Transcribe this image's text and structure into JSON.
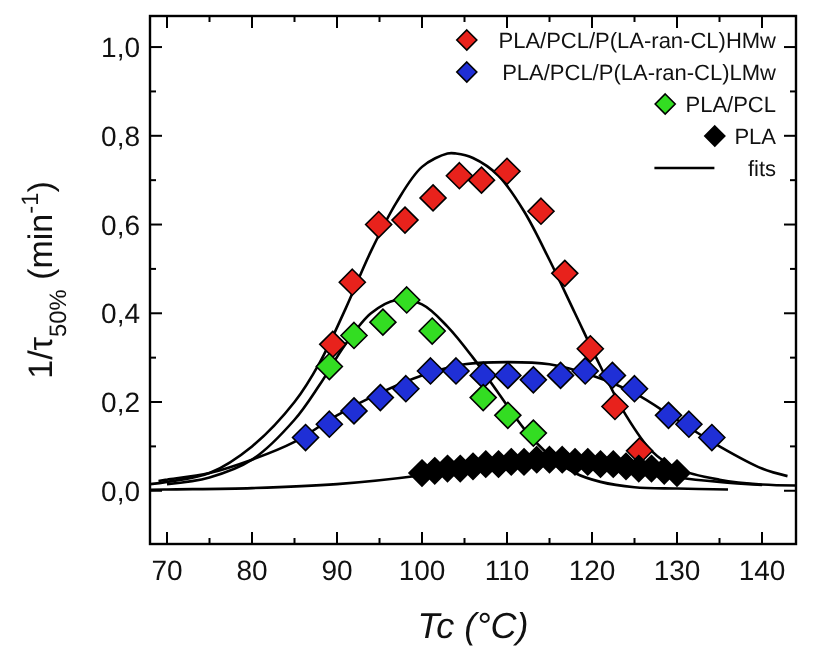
{
  "chart_data": {
    "type": "scatter",
    "xlabel": "Tc (°C)",
    "ylabel": "1/τ$_{50%}$ (min$^{-1}$)",
    "xlim": [
      68,
      144
    ],
    "ylim": [
      -0.12,
      1.07
    ],
    "xticks": [
      70,
      {
        "value": 75,
        "label": null
      },
      80,
      {
        "value": 85,
        "label": null
      },
      90,
      {
        "value": 95,
        "label": null
      },
      100,
      {
        "value": 105,
        "label": null
      },
      110,
      {
        "value": 115,
        "label": null
      },
      120,
      {
        "value": 125,
        "label": null
      },
      130,
      {
        "value": 135,
        "label": null
      },
      140
    ],
    "yticks": [
      {
        "value": 0,
        "label": "0,0"
      },
      {
        "value": 0.1,
        "label": null
      },
      {
        "value": 0.2,
        "label": "0,2"
      },
      {
        "value": 0.3,
        "label": null
      },
      {
        "value": 0.4,
        "label": "0,4"
      },
      {
        "value": 0.5,
        "label": null
      },
      {
        "value": 0.6,
        "label": "0,6"
      },
      {
        "value": 0.7,
        "label": null
      },
      {
        "value": 0.8,
        "label": "0,8"
      },
      {
        "value": 0.9,
        "label": null
      },
      {
        "value": 1.0,
        "label": "1,0"
      }
    ],
    "legend": "top right",
    "grid": false,
    "series": [
      {
        "type": "scatter",
        "marker": "diamond",
        "name": "PLA/PCL/P(LA-ran-CL)HMw",
        "color": "#e8221c",
        "x": [
          89.5,
          91.8,
          94.9,
          98,
          101.3,
          104.4,
          107,
          110,
          114,
          116.8,
          119.8,
          122.7,
          125.6
        ],
        "values": [
          0.33,
          0.47,
          0.6,
          0.61,
          0.66,
          0.71,
          0.7,
          0.72,
          0.63,
          0.49,
          0.32,
          0.19,
          0.09
        ]
      },
      {
        "marker": "diamond",
        "name": "PLA/PCL/P(LA-ran-CL)LMw",
        "color": "#1f2fd6",
        "x": [
          86.3,
          89.1,
          92,
          95.1,
          98.1,
          101,
          104,
          107.2,
          110.1,
          113.1,
          116.3,
          119.2,
          122.4,
          125,
          129,
          131.4,
          134.1
        ],
        "values": [
          0.12,
          0.15,
          0.18,
          0.21,
          0.23,
          0.27,
          0.27,
          0.26,
          0.26,
          0.25,
          0.26,
          0.27,
          0.26,
          0.23,
          0.17,
          0.15,
          0.12
        ]
      },
      {
        "marker": "diamond",
        "name": "PLA/PCL",
        "color": "#33dd22",
        "x": [
          89.1,
          92,
          95.4,
          98.2,
          101.2,
          107.2,
          110.1,
          113.1
        ],
        "values": [
          0.28,
          0.35,
          0.38,
          0.43,
          0.36,
          0.21,
          0.17,
          0.13
        ]
      },
      {
        "marker": "diamond",
        "name": "PLA",
        "color": "#000000",
        "x": [
          100,
          101.5,
          103,
          104.5,
          106,
          107.5,
          109,
          110.5,
          112,
          113.5,
          115,
          116.5,
          118,
          119.5,
          121,
          122.5,
          124,
          125.5,
          127,
          128.5,
          130
        ],
        "values": [
          0.04,
          0.045,
          0.05,
          0.05,
          0.055,
          0.06,
          0.06,
          0.065,
          0.065,
          0.07,
          0.07,
          0.07,
          0.065,
          0.065,
          0.06,
          0.06,
          0.055,
          0.05,
          0.05,
          0.045,
          0.04
        ]
      },
      {
        "type": "line",
        "marker": "none",
        "name": "fits",
        "color": "#000000",
        "x": [
          68,
          70,
          75,
          80,
          85,
          88,
          91,
          94,
          97,
          100,
          103,
          104,
          106,
          109,
          112,
          115,
          118,
          121,
          124,
          127,
          130,
          135,
          140,
          144
        ],
        "values": [
          0.015,
          0.02,
          0.04,
          0.1,
          0.2,
          0.29,
          0.41,
          0.54,
          0.65,
          0.73,
          0.76,
          0.76,
          0.75,
          0.71,
          0.63,
          0.52,
          0.4,
          0.28,
          0.17,
          0.09,
          0.05,
          0.025,
          0.014,
          0.012
        ]
      },
      {
        "type": "line",
        "marker": "none",
        "color": "#000000",
        "x": [
          70,
          75,
          80,
          85,
          88,
          91,
          94,
          97,
          100,
          103,
          106,
          109,
          112,
          115,
          118,
          121,
          125,
          130,
          136
        ],
        "values": [
          0.015,
          0.03,
          0.07,
          0.16,
          0.24,
          0.33,
          0.4,
          0.43,
          0.42,
          0.37,
          0.3,
          0.22,
          0.14,
          0.08,
          0.04,
          0.02,
          0.008,
          0.005,
          0.003
        ]
      },
      {
        "type": "line",
        "marker": "none",
        "color": "#000000",
        "x": [
          69,
          70,
          75,
          80,
          85,
          90,
          95,
          100,
          105,
          110,
          115,
          120,
          125,
          130,
          135,
          140,
          143
        ],
        "values": [
          0.022,
          0.025,
          0.04,
          0.07,
          0.11,
          0.17,
          0.22,
          0.26,
          0.285,
          0.29,
          0.285,
          0.26,
          0.22,
          0.16,
          0.1,
          0.05,
          0.033
        ]
      },
      {
        "type": "line",
        "marker": "none",
        "color": "#000000",
        "x": [
          68,
          70,
          80,
          90,
          100,
          105,
          110,
          115,
          120,
          125,
          130,
          135,
          140
        ],
        "values": [
          0.002,
          0.003,
          0.006,
          0.015,
          0.035,
          0.05,
          0.065,
          0.07,
          0.06,
          0.045,
          0.03,
          0.02,
          0.013
        ]
      }
    ]
  }
}
